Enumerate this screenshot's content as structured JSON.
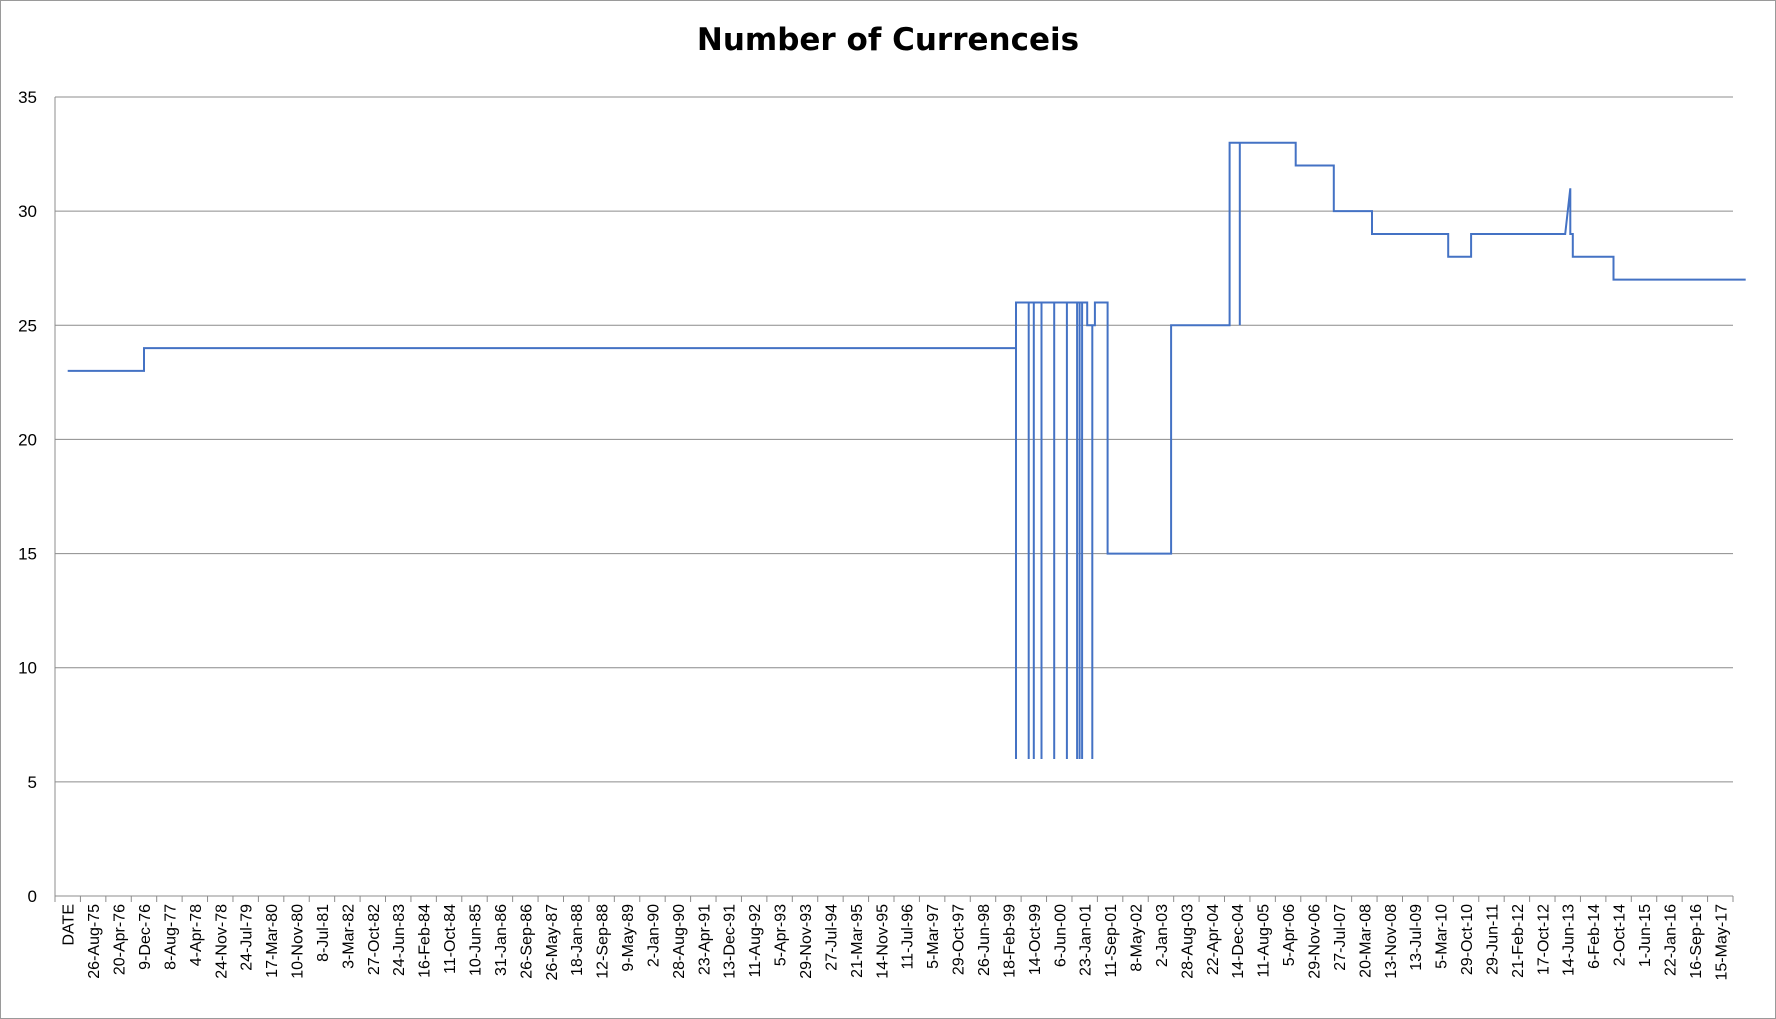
{
  "chart_data": {
    "type": "line",
    "title": "Number of Currenceis",
    "xlabel": "",
    "ylabel": "",
    "ylim": [
      0,
      35
    ],
    "y_ticks": [
      0,
      5,
      10,
      15,
      20,
      25,
      30,
      35
    ],
    "grid": "horizontal",
    "legend": "none",
    "line_color": "#4472C4",
    "x_tick_labels": [
      "DATE",
      "26-Aug-75",
      "20-Apr-76",
      "9-Dec-76",
      "8-Aug-77",
      "4-Apr-78",
      "24-Nov-78",
      "24-Jul-79",
      "17-Mar-80",
      "10-Nov-80",
      "8-Jul-81",
      "3-Mar-82",
      "27-Oct-82",
      "24-Jun-83",
      "16-Feb-84",
      "11-Oct-84",
      "10-Jun-85",
      "31-Jan-86",
      "26-Sep-86",
      "26-May-87",
      "18-Jan-88",
      "12-Sep-88",
      "9-May-89",
      "2-Jan-90",
      "28-Aug-90",
      "23-Apr-91",
      "13-Dec-91",
      "11-Aug-92",
      "5-Apr-93",
      "29-Nov-93",
      "27-Jul-94",
      "21-Mar-95",
      "14-Nov-95",
      "11-Jul-96",
      "5-Mar-97",
      "29-Oct-97",
      "26-Jun-98",
      "18-Feb-99",
      "14-Oct-99",
      "6-Jun-00",
      "23-Jan-01",
      "11-Sep-01",
      "8-May-02",
      "2-Jan-03",
      "28-Aug-03",
      "22-Apr-04",
      "14-Dec-04",
      "11-Aug-05",
      "5-Apr-06",
      "29-Nov-06",
      "27-Jul-07",
      "20-Mar-08",
      "13-Nov-08",
      "13-Jul-09",
      "5-Mar-10",
      "29-Oct-10",
      "29-Jun-11",
      "21-Feb-12",
      "17-Oct-12",
      "14-Jun-13",
      "6-Feb-14",
      "2-Oct-14",
      "1-Jun-15",
      "22-Jan-16",
      "16-Sep-16",
      "15-May-17"
    ],
    "series": [
      {
        "points": [
          [
            0,
            23
          ],
          [
            3,
            23
          ],
          [
            3,
            24
          ],
          [
            37.3,
            24
          ],
          [
            37.3,
            6
          ],
          [
            37.3,
            26
          ],
          [
            37.8,
            26
          ],
          [
            37.8,
            6
          ],
          [
            37.8,
            26
          ],
          [
            38.0,
            26
          ],
          [
            38.0,
            6
          ],
          [
            38.0,
            26
          ],
          [
            38.3,
            26
          ],
          [
            38.3,
            6
          ],
          [
            38.3,
            26
          ],
          [
            38.8,
            26
          ],
          [
            38.8,
            6
          ],
          [
            38.8,
            26
          ],
          [
            39.3,
            26
          ],
          [
            39.3,
            6
          ],
          [
            39.3,
            26
          ],
          [
            39.7,
            26
          ],
          [
            39.7,
            6
          ],
          [
            39.7,
            26
          ],
          [
            39.8,
            26
          ],
          [
            39.8,
            6
          ],
          [
            39.8,
            26
          ],
          [
            39.9,
            26
          ],
          [
            39.9,
            6
          ],
          [
            39.9,
            26
          ],
          [
            40.1,
            26
          ],
          [
            40.1,
            25
          ],
          [
            40.3,
            25
          ],
          [
            40.3,
            6
          ],
          [
            40.3,
            25
          ],
          [
            40.4,
            25
          ],
          [
            40.4,
            26
          ],
          [
            40.9,
            26
          ],
          [
            40.9,
            15
          ],
          [
            43.4,
            15
          ],
          [
            43.4,
            25
          ],
          [
            45.7,
            25
          ],
          [
            45.7,
            33
          ],
          [
            46.1,
            33
          ],
          [
            46.1,
            25
          ],
          [
            46.1,
            33
          ],
          [
            48.3,
            33
          ],
          [
            48.3,
            32
          ],
          [
            49.8,
            32
          ],
          [
            49.8,
            30
          ],
          [
            51.3,
            30
          ],
          [
            51.3,
            29
          ],
          [
            54.3,
            29
          ],
          [
            54.3,
            28
          ],
          [
            55.2,
            28
          ],
          [
            55.2,
            29
          ],
          [
            58.9,
            29
          ],
          [
            59.1,
            31
          ],
          [
            59.1,
            29
          ],
          [
            59.2,
            29
          ],
          [
            59.2,
            28
          ],
          [
            60.8,
            28
          ],
          [
            60.8,
            27
          ],
          [
            66,
            27
          ]
        ]
      }
    ]
  }
}
